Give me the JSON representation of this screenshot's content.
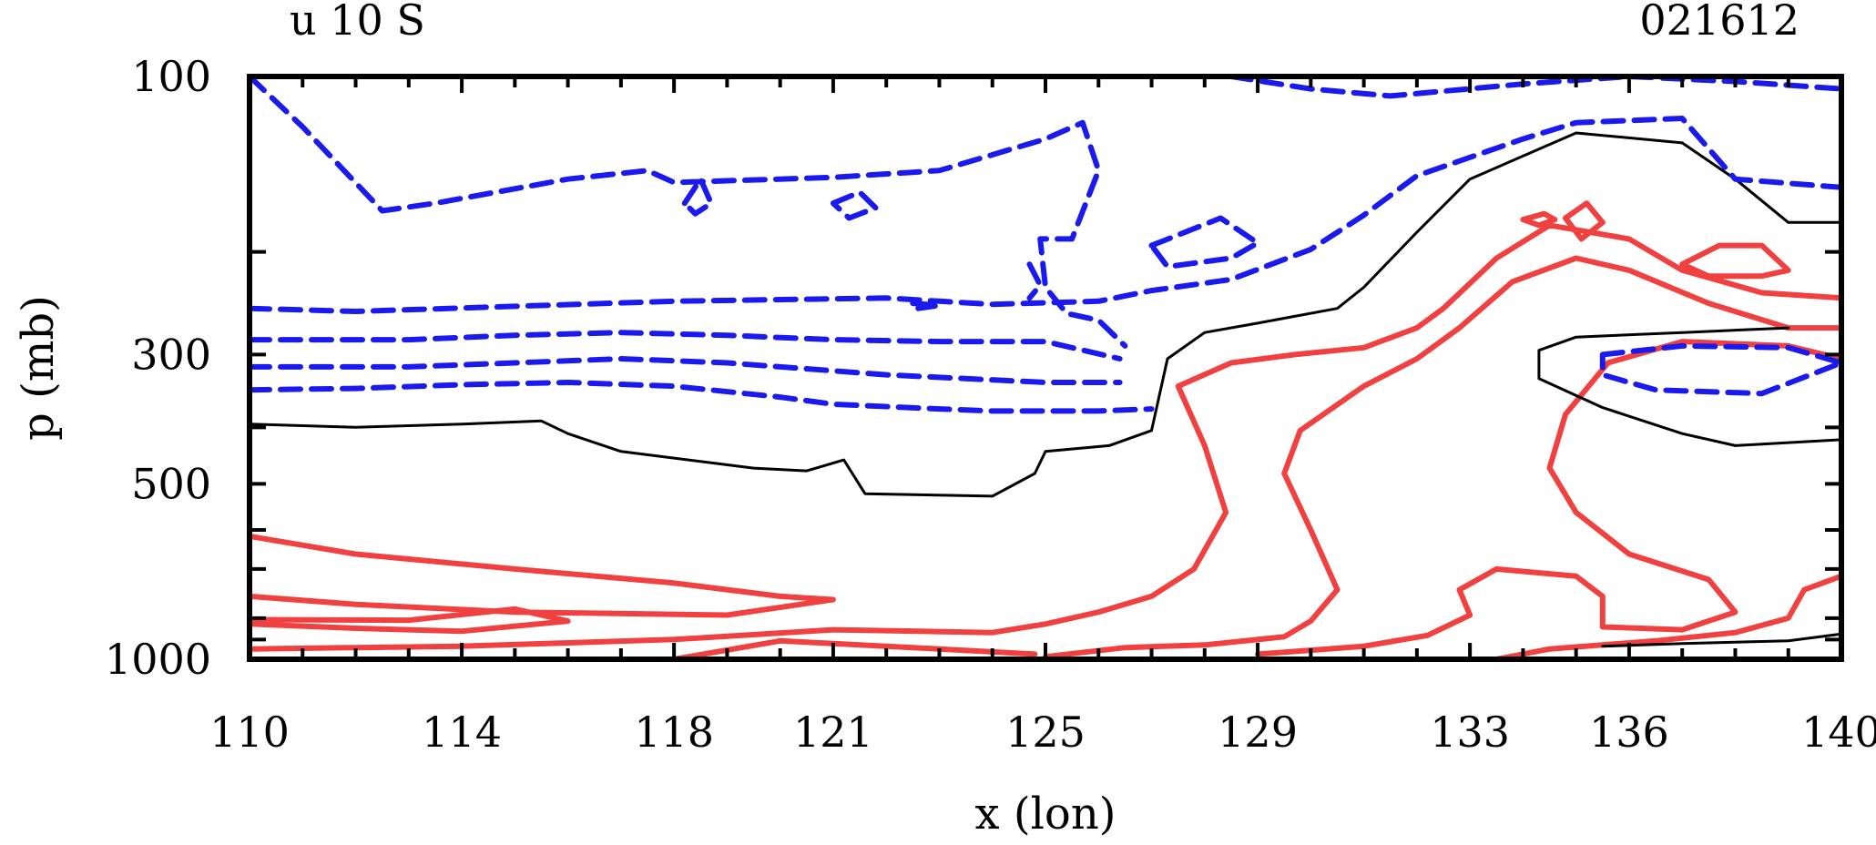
{
  "chart_data": {
    "type": "contour",
    "title_left": "u 10 S",
    "title_right": "021612",
    "xlabel": "x (lon)",
    "ylabel": "p (mb)",
    "xlim": [
      110,
      140
    ],
    "ylim_pressure": [
      1000,
      100
    ],
    "x_tick_labels": [
      "110",
      "114",
      "118",
      "121",
      "125",
      "129",
      "133",
      "136",
      "140"
    ],
    "x_tick_values": [
      110,
      114,
      118,
      121,
      125,
      129,
      133,
      136,
      140
    ],
    "y_tick_labels": [
      "100",
      "300",
      "500",
      "1000"
    ],
    "y_tick_values": [
      100,
      300,
      500,
      1000
    ],
    "colors": {
      "positive": "#f04040",
      "negative": "#1a1aee",
      "zero": "#000000"
    },
    "contour_sets": [
      {
        "name": "positive",
        "style": "solid",
        "color": "#f04040",
        "lines": [
          [
            [
              110,
              615
            ],
            [
              112,
              660
            ],
            [
              115,
              700
            ],
            [
              118,
              740
            ],
            [
              120,
              780
            ],
            [
              121,
              790
            ],
            [
              119,
              840
            ],
            [
              115,
              830
            ],
            [
              112,
              805
            ],
            [
              110,
              780
            ]
          ],
          [
            [
              110,
              960
            ],
            [
              114,
              950
            ],
            [
              118,
              925
            ],
            [
              121,
              890
            ],
            [
              124,
              900
            ],
            [
              125,
              870
            ],
            [
              126,
              830
            ],
            [
              127,
              780
            ],
            [
              127.8,
              700
            ],
            [
              128.4,
              560
            ],
            [
              128,
              430
            ],
            [
              127.5,
              340
            ],
            [
              128.5,
              310
            ],
            [
              129.7,
              300
            ],
            [
              131,
              292
            ],
            [
              132,
              270
            ],
            [
              132.5,
              250
            ],
            [
              133.5,
              205
            ],
            [
              134.5,
              180
            ],
            [
              136,
              190
            ],
            [
              137,
              215
            ],
            [
              138.5,
              235
            ],
            [
              140,
              240
            ]
          ],
          [
            [
              118,
              1000
            ],
            [
              120,
              930
            ],
            [
              121,
              940
            ],
            [
              123,
              960
            ],
            [
              124.8,
              980
            ]
          ],
          [
            [
              125,
              990
            ],
            [
              126.5,
              955
            ],
            [
              128,
              945
            ],
            [
              129.5,
              915
            ],
            [
              130,
              860
            ],
            [
              130.5,
              760
            ],
            [
              130,
              600
            ],
            [
              129.5,
              480
            ],
            [
              129.8,
              405
            ],
            [
              131,
              340
            ],
            [
              132,
              305
            ],
            [
              132.8,
              270
            ],
            [
              133.8,
              225
            ],
            [
              135,
              205
            ],
            [
              136,
              215
            ],
            [
              137.5,
              245
            ],
            [
              139,
              270
            ],
            [
              140,
              270
            ]
          ],
          [
            [
              129,
              980
            ],
            [
              131,
              950
            ],
            [
              132.2,
              910
            ],
            [
              133,
              840
            ],
            [
              132.8,
              760
            ],
            [
              133.5,
              700
            ],
            [
              135,
              720
            ],
            [
              135.5,
              780
            ],
            [
              135.5,
              880
            ],
            [
              137,
              890
            ],
            [
              138,
              830
            ],
            [
              137.5,
              730
            ],
            [
              136,
              660
            ],
            [
              135,
              560
            ],
            [
              134.5,
              470
            ],
            [
              134.8,
              380
            ],
            [
              135.6,
              310
            ],
            [
              137,
              285
            ],
            [
              139,
              290
            ],
            [
              140,
              305
            ]
          ],
          [
            [
              133.5,
              1000
            ],
            [
              134.5,
              960
            ],
            [
              136.5,
              930
            ],
            [
              138,
              900
            ],
            [
              139,
              850
            ],
            [
              139.3,
              760
            ],
            [
              140,
              720
            ]
          ],
          [
            [
              137,
              210
            ],
            [
              137.7,
              195
            ],
            [
              138.5,
              195
            ],
            [
              139,
              215
            ],
            [
              138.5,
              220
            ],
            [
              137.5,
              220
            ],
            [
              137,
              210
            ]
          ],
          [
            [
              134.8,
              175
            ],
            [
              135.2,
              165
            ],
            [
              135.5,
              178
            ],
            [
              135.1,
              190
            ],
            [
              134.8,
              175
            ]
          ],
          [
            [
              134,
              176
            ],
            [
              134.4,
              172
            ],
            [
              134.6,
              176
            ],
            [
              134.3,
              180
            ],
            [
              134,
              176
            ]
          ],
          [
            [
              110,
              855
            ],
            [
              113,
              857
            ],
            [
              115,
              820
            ],
            [
              116,
              860
            ],
            [
              114,
              895
            ],
            [
              112,
              885
            ],
            [
              110,
              870
            ]
          ]
        ]
      },
      {
        "name": "zero",
        "style": "thin",
        "color": "#000000",
        "lines": [
          [
            [
              110,
              395
            ],
            [
              112,
              400
            ],
            [
              114,
              395
            ],
            [
              115.5,
              390
            ],
            [
              116,
              410
            ],
            [
              117,
              440
            ],
            [
              119.5,
              470
            ],
            [
              120.5,
              475
            ],
            [
              121.2,
              455
            ],
            [
              121.6,
              520
            ],
            [
              124,
              525
            ],
            [
              124.8,
              480
            ],
            [
              125,
              440
            ],
            [
              126.2,
              430
            ],
            [
              127,
              405
            ],
            [
              127.3,
              305
            ],
            [
              128,
              275
            ],
            [
              129,
              265
            ],
            [
              130.5,
              250
            ],
            [
              131,
              230
            ],
            [
              132,
              185
            ],
            [
              133,
              150
            ],
            [
              135,
              125
            ],
            [
              137,
              130
            ],
            [
              138,
              150
            ],
            [
              139,
              178
            ],
            [
              140,
              178
            ]
          ],
          [
            [
              135.5,
              950
            ],
            [
              137,
              940
            ],
            [
              139,
              930
            ],
            [
              140,
              905
            ]
          ],
          [
            [
              139,
              270
            ],
            [
              137,
              275
            ],
            [
              135,
              280
            ],
            [
              134.3,
              295
            ],
            [
              134.3,
              330
            ],
            [
              135.5,
              370
            ],
            [
              137,
              410
            ],
            [
              138,
              430
            ],
            [
              140,
              420
            ]
          ]
        ]
      },
      {
        "name": "negative",
        "style": "dashed",
        "color": "#1a1aee",
        "lines": [
          [
            [
              110,
              250
            ],
            [
              112,
              253
            ],
            [
              115,
              248
            ],
            [
              118,
              243
            ],
            [
              122,
              240
            ],
            [
              123,
              243
            ],
            [
              124,
              246
            ],
            [
              126,
              243
            ],
            [
              127,
              233
            ],
            [
              128.5,
              223
            ],
            [
              130,
              198
            ],
            [
              131,
              173
            ],
            [
              132,
              148
            ],
            [
              134,
              128
            ],
            [
              135,
              120
            ],
            [
              137,
              118
            ],
            [
              138,
              150
            ],
            [
              140,
              155
            ]
          ],
          [
            [
              110,
              283
            ],
            [
              113,
              283
            ],
            [
              115,
              278
            ],
            [
              117,
              275
            ],
            [
              119,
              278
            ],
            [
              121,
              283
            ],
            [
              123,
              285
            ],
            [
              125,
              285
            ],
            [
              126.4,
              305
            ]
          ],
          [
            [
              110,
              315
            ],
            [
              113,
              315
            ],
            [
              115,
              310
            ],
            [
              117,
              305
            ],
            [
              119,
              310
            ],
            [
              122,
              325
            ],
            [
              125,
              335
            ],
            [
              126.4,
              335
            ]
          ],
          [
            [
              110,
              345
            ],
            [
              112,
              343
            ],
            [
              114,
              338
            ],
            [
              116,
              335
            ],
            [
              118,
              340
            ],
            [
              120,
              355
            ],
            [
              121,
              365
            ],
            [
              123,
              372
            ],
            [
              124,
              375
            ],
            [
              126,
              375
            ],
            [
              127,
              372
            ]
          ],
          [
            [
              110,
              100
            ],
            [
              111,
              122
            ],
            [
              112.5,
              170
            ],
            [
              113.5,
              165
            ],
            [
              116,
              150
            ],
            [
              117.5,
              145
            ],
            [
              118,
              152
            ],
            [
              121,
              149
            ],
            [
              123,
              145
            ],
            [
              125,
              128
            ],
            [
              125.7,
              120
            ],
            [
              126,
              145
            ],
            [
              125.5,
              190
            ],
            [
              124.9,
              190
            ],
            [
              125,
              230
            ],
            [
              125.4,
              255
            ],
            [
              126,
              262
            ],
            [
              126.5,
              290
            ]
          ],
          [
            [
              118.2,
              165
            ],
            [
              118.5,
              150
            ],
            [
              118.7,
              165
            ],
            [
              118.4,
              172
            ],
            [
              118.2,
              165
            ]
          ],
          [
            [
              121,
              165
            ],
            [
              121.5,
              158
            ],
            [
              121.8,
              168
            ],
            [
              121.3,
              175
            ],
            [
              121,
              165
            ]
          ],
          [
            [
              127,
              195
            ],
            [
              128.3,
              175
            ],
            [
              129,
              193
            ],
            [
              128.5,
              205
            ],
            [
              127.3,
              212
            ],
            [
              127,
              195
            ]
          ],
          [
            [
              124.7,
              210
            ],
            [
              124.9,
              228
            ],
            [
              124.7,
              240
            ]
          ],
          [
            [
              122.5,
              245
            ],
            [
              123,
              247
            ],
            [
              122.6,
              250
            ]
          ],
          [
            [
              128.5,
              100
            ],
            [
              130,
              105
            ],
            [
              131.5,
              108
            ],
            [
              134,
              103
            ],
            [
              136,
              100
            ],
            [
              138,
              102
            ],
            [
              140,
              105
            ]
          ],
          [
            [
              135.5,
              300
            ],
            [
              137,
              290
            ],
            [
              139,
              292
            ],
            [
              140,
              310
            ],
            [
              138.5,
              350
            ],
            [
              136.5,
              345
            ],
            [
              135.5,
              325
            ],
            [
              135.5,
              300
            ]
          ]
        ]
      }
    ]
  }
}
